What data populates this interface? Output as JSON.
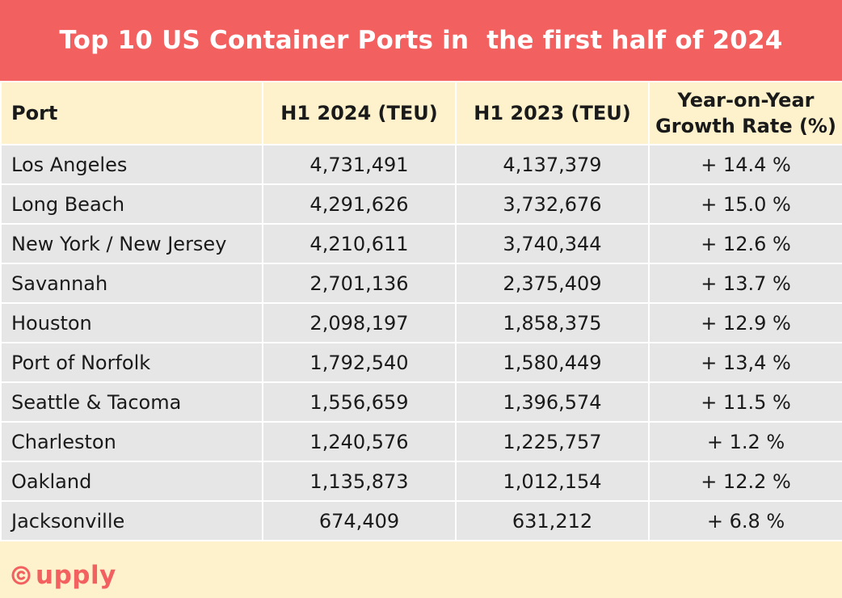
{
  "title": "Top 10 US Container Ports in  the first half of 2024",
  "headers": {
    "port": "Port",
    "h1_2024": "H1 2024 (TEU)",
    "h1_2023": "H1 2023 (TEU)",
    "growth": "Year-on-Year Growth Rate (%)"
  },
  "rows": [
    {
      "port": "Los Angeles",
      "h1_2024": "4,731,491",
      "h1_2023": "4,137,379",
      "growth": "+ 14.4 %"
    },
    {
      "port": "Long Beach",
      "h1_2024": "4,291,626",
      "h1_2023": "3,732,676",
      "growth": "+ 15.0 %"
    },
    {
      "port": "New York / New Jersey",
      "h1_2024": "4,210,611",
      "h1_2023": "3,740,344",
      "growth": "+ 12.6 %"
    },
    {
      "port": "Savannah",
      "h1_2024": "2,701,136",
      "h1_2023": "2,375,409",
      "growth": "+ 13.7 %"
    },
    {
      "port": "Houston",
      "h1_2024": "2,098,197",
      "h1_2023": "1,858,375",
      "growth": "+ 12.9 %"
    },
    {
      "port": "Port of Norfolk",
      "h1_2024": "1,792,540",
      "h1_2023": "1,580,449",
      "growth": "+ 13,4 %"
    },
    {
      "port": "Seattle & Tacoma",
      "h1_2024": "1,556,659",
      "h1_2023": "1,396,574",
      "growth": "+ 11.5 %"
    },
    {
      "port": "Charleston",
      "h1_2024": "1,240,576",
      "h1_2023": "1,225,757",
      "growth": "+ 1.2 %"
    },
    {
      "port": "Oakland",
      "h1_2024": "1,135,873",
      "h1_2023": "1,012,154",
      "growth": "+ 12.2 %"
    },
    {
      "port": "Jacksonville",
      "h1_2024": "674,409",
      "h1_2023": "631,212",
      "growth": "+ 6.8 %"
    }
  ],
  "brand": {
    "logo_text": "upply",
    "logo_icon": "copyright-icon",
    "colors": {
      "title_bg": "#f26060",
      "header_bg": "#fdf2cc",
      "row_bg": "#e6e6e6",
      "brand": "#f26060"
    }
  },
  "chart_data": {
    "type": "table",
    "title": "Top 10 US Container Ports in  the first half of 2024",
    "columns": [
      "Port",
      "H1 2024 (TEU)",
      "H1 2023 (TEU)",
      "Year-on-Year Growth Rate (%)"
    ],
    "categories": [
      "Los Angeles",
      "Long Beach",
      "New York / New Jersey",
      "Savannah",
      "Houston",
      "Port of Norfolk",
      "Seattle & Tacoma",
      "Charleston",
      "Oakland",
      "Jacksonville"
    ],
    "series": [
      {
        "name": "H1 2024 (TEU)",
        "values": [
          4731491,
          4291626,
          4210611,
          2701136,
          2098197,
          1792540,
          1556659,
          1240576,
          1135873,
          674409
        ]
      },
      {
        "name": "H1 2023 (TEU)",
        "values": [
          4137379,
          3732676,
          3740344,
          2375409,
          1858375,
          1580449,
          1396574,
          1225757,
          1012154,
          631212
        ]
      },
      {
        "name": "Year-on-Year Growth Rate (%)",
        "values": [
          14.4,
          15.0,
          12.6,
          13.7,
          12.9,
          13.4,
          11.5,
          1.2,
          12.2,
          6.8
        ]
      }
    ]
  }
}
